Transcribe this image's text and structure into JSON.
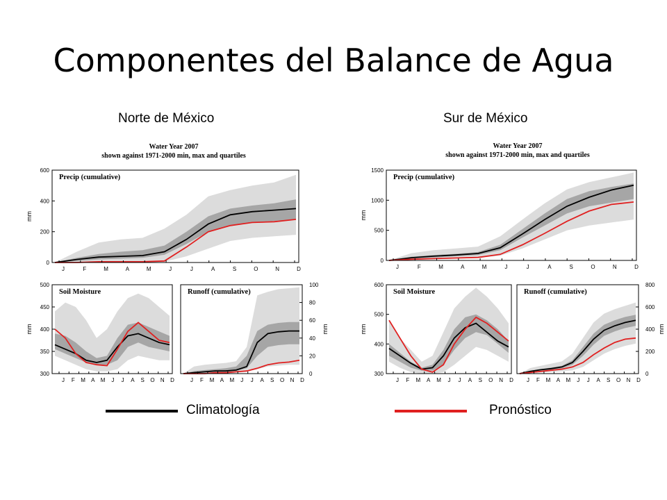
{
  "page": {
    "title": "Componentes del Balance de Agua",
    "regions": [
      "Norte de México",
      "Sur de México"
    ],
    "figure_title_line1": "Water Year 2007",
    "figure_title_line2": "shown against 1971-2000 min, max and quartiles"
  },
  "legend": {
    "climatology_label": "Climatología",
    "forecast_label": "Pronóstico",
    "climatology_color": "#000000",
    "forecast_color": "#e02020"
  },
  "chart_data": [
    {
      "type": "area",
      "region": "Norte de México",
      "title": "Precip (cumulative)",
      "ylabel": "mm",
      "ylim": [
        0,
        600
      ],
      "yticks": [
        0,
        200,
        400,
        600
      ],
      "months": [
        "J",
        "F",
        "M",
        "A",
        "M",
        "J",
        "J",
        "A",
        "S",
        "O",
        "N",
        "D"
      ],
      "bands": {
        "min": [
          0,
          0,
          0,
          0,
          0,
          5,
          40,
          90,
          140,
          160,
          170,
          180
        ],
        "q25": [
          0,
          10,
          20,
          25,
          30,
          50,
          120,
          200,
          240,
          260,
          270,
          280
        ],
        "q75": [
          0,
          30,
          55,
          70,
          80,
          110,
          200,
          300,
          350,
          370,
          385,
          410
        ],
        "max": [
          0,
          70,
          130,
          150,
          160,
          220,
          310,
          430,
          470,
          500,
          520,
          570
        ]
      },
      "series": [
        {
          "name": "Climatología",
          "values": [
            0,
            20,
            35,
            40,
            45,
            70,
            150,
            250,
            310,
            330,
            340,
            350
          ]
        },
        {
          "name": "Pronóstico",
          "values": [
            0,
            0,
            5,
            5,
            5,
            10,
            100,
            200,
            240,
            260,
            265,
            280
          ]
        }
      ]
    },
    {
      "type": "area",
      "region": "Norte de México",
      "title": "Soil Moisture",
      "ylabel": "mm",
      "ylim": [
        300,
        500
      ],
      "yticks": [
        300,
        350,
        400,
        450,
        500
      ],
      "months": [
        "J",
        "F",
        "M",
        "A",
        "M",
        "J",
        "J",
        "A",
        "S",
        "O",
        "N",
        "D"
      ],
      "bands": {
        "min": [
          340,
          330,
          320,
          310,
          305,
          305,
          310,
          330,
          340,
          335,
          330,
          330
        ],
        "q25": [
          355,
          345,
          335,
          325,
          320,
          320,
          330,
          360,
          370,
          360,
          355,
          350
        ],
        "q75": [
          390,
          385,
          370,
          350,
          335,
          340,
          380,
          410,
          415,
          405,
          395,
          385
        ],
        "max": [
          440,
          460,
          450,
          420,
          380,
          400,
          440,
          470,
          480,
          470,
          450,
          430
        ]
      },
      "series": [
        {
          "name": "Climatología",
          "values": [
            365,
            355,
            345,
            330,
            325,
            330,
            360,
            385,
            390,
            380,
            370,
            365
          ]
        },
        {
          "name": "Pronóstico",
          "values": [
            400,
            380,
            345,
            325,
            320,
            318,
            355,
            395,
            415,
            395,
            375,
            370
          ]
        }
      ]
    },
    {
      "type": "area",
      "region": "Norte de México",
      "title": "Runoff (cumulative)",
      "ylabel": "mm",
      "ylim": [
        0,
        100
      ],
      "yticks": [
        0,
        20,
        40,
        60,
        80,
        100
      ],
      "months": [
        "J",
        "F",
        "M",
        "A",
        "M",
        "J",
        "J",
        "A",
        "S",
        "O",
        "N",
        "D"
      ],
      "bands": {
        "min": [
          0,
          0,
          0,
          0,
          0,
          1,
          2,
          5,
          8,
          9,
          10,
          10
        ],
        "q25": [
          0,
          1,
          1,
          2,
          2,
          3,
          6,
          20,
          30,
          32,
          33,
          33
        ],
        "q75": [
          0,
          3,
          4,
          5,
          6,
          8,
          20,
          48,
          55,
          57,
          58,
          58
        ],
        "max": [
          0,
          8,
          10,
          11,
          12,
          14,
          30,
          88,
          92,
          95,
          96,
          97
        ]
      },
      "series": [
        {
          "name": "Climatología",
          "values": [
            0,
            1,
            2,
            3,
            3,
            4,
            8,
            35,
            45,
            47,
            48,
            48
          ]
        },
        {
          "name": "Pronóstico",
          "values": [
            0,
            0,
            0,
            1,
            1,
            2,
            3,
            6,
            10,
            12,
            13,
            15
          ]
        }
      ]
    },
    {
      "type": "area",
      "region": "Sur de México",
      "title": "Precip (cumulative)",
      "ylabel": "mm",
      "ylim": [
        0,
        1500
      ],
      "yticks": [
        0,
        500,
        1000,
        1500
      ],
      "months": [
        "J",
        "F",
        "M",
        "A",
        "M",
        "J",
        "J",
        "A",
        "S",
        "O",
        "N",
        "D"
      ],
      "bands": {
        "min": [
          0,
          10,
          20,
          30,
          40,
          80,
          200,
          350,
          500,
          580,
          630,
          680
        ],
        "q25": [
          0,
          30,
          50,
          70,
          90,
          170,
          380,
          580,
          780,
          900,
          960,
          1020
        ],
        "q75": [
          0,
          60,
          90,
          110,
          140,
          260,
          520,
          780,
          1020,
          1150,
          1220,
          1280
        ],
        "max": [
          0,
          120,
          170,
          200,
          230,
          400,
          680,
          950,
          1180,
          1300,
          1380,
          1460
        ]
      },
      "series": [
        {
          "name": "Climatología",
          "values": [
            0,
            45,
            70,
            90,
            115,
            210,
            440,
            680,
            900,
            1050,
            1170,
            1250
          ]
        },
        {
          "name": "Pronóstico",
          "values": [
            0,
            20,
            30,
            40,
            50,
            100,
            260,
            450,
            650,
            820,
            930,
            970
          ]
        }
      ]
    },
    {
      "type": "area",
      "region": "Sur de México",
      "title": "Soil Moisture",
      "ylabel": "mm",
      "ylim": [
        300,
        600
      ],
      "yticks": [
        300,
        400,
        500,
        600
      ],
      "months": [
        "J",
        "F",
        "M",
        "A",
        "M",
        "J",
        "J",
        "A",
        "S",
        "O",
        "N",
        "D"
      ],
      "bands": {
        "min": [
          340,
          320,
          305,
          300,
          300,
          305,
          330,
          360,
          390,
          380,
          360,
          340
        ],
        "q25": [
          360,
          340,
          320,
          310,
          310,
          330,
          380,
          420,
          440,
          430,
          400,
          370
        ],
        "q75": [
          400,
          370,
          340,
          320,
          330,
          380,
          450,
          490,
          500,
          480,
          450,
          410
        ],
        "max": [
          480,
          420,
          380,
          340,
          360,
          440,
          520,
          560,
          590,
          560,
          520,
          470
        ]
      },
      "series": [
        {
          "name": "Climatología",
          "values": [
            385,
            360,
            335,
            315,
            320,
            360,
            420,
            455,
            470,
            440,
            410,
            390
          ]
        },
        {
          "name": "Pronóstico",
          "values": [
            480,
            420,
            360,
            315,
            305,
            330,
            400,
            450,
            490,
            470,
            440,
            410
          ]
        }
      ]
    },
    {
      "type": "area",
      "region": "Sur de México",
      "title": "Runoff (cumulative)",
      "ylabel": "mm",
      "ylim": [
        0,
        800
      ],
      "yticks": [
        0,
        200,
        400,
        600,
        800
      ],
      "months": [
        "J",
        "F",
        "M",
        "A",
        "M",
        "J",
        "J",
        "A",
        "S",
        "O",
        "N",
        "D"
      ],
      "bands": {
        "min": [
          0,
          5,
          10,
          15,
          20,
          30,
          60,
          120,
          180,
          220,
          250,
          270
        ],
        "q25": [
          0,
          15,
          25,
          35,
          45,
          80,
          160,
          260,
          340,
          380,
          410,
          430
        ],
        "q75": [
          0,
          25,
          40,
          55,
          70,
          120,
          240,
          360,
          440,
          480,
          510,
          530
        ],
        "max": [
          0,
          50,
          70,
          90,
          110,
          180,
          320,
          460,
          540,
          580,
          610,
          640
        ]
      },
      "series": [
        {
          "name": "Climatología",
          "values": [
            0,
            20,
            35,
            45,
            60,
            100,
            200,
            310,
            390,
            430,
            460,
            480
          ]
        },
        {
          "name": "Pronóstico",
          "values": [
            0,
            10,
            20,
            30,
            40,
            60,
            100,
            170,
            230,
            280,
            310,
            320
          ]
        }
      ]
    }
  ]
}
